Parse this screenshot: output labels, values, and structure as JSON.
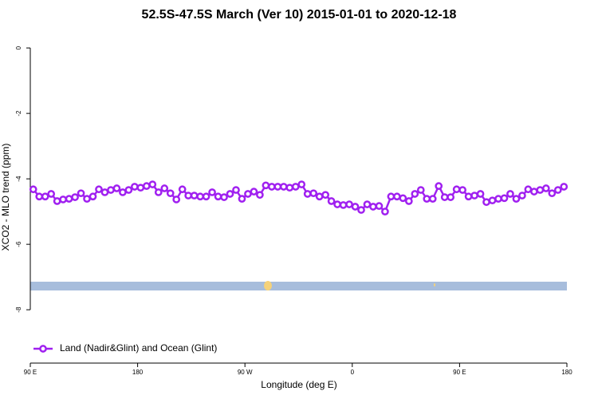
{
  "chart_data": {
    "type": "line",
    "title": "52.5S-47.5S March (Ver 10)   2015-01-01 to 2020-12-18",
    "x_label": "Longitude (deg E)",
    "y_label": "XCO2 - MLO trend (ppm)",
    "x": [
      92.5,
      97.5,
      102.5,
      107.5,
      112.5,
      117.5,
      122.5,
      127.5,
      132.5,
      137.5,
      142.5,
      147.5,
      152.5,
      157.5,
      162.5,
      167.5,
      172.5,
      177.5,
      182.5,
      187.5,
      192.5,
      197.5,
      202.5,
      207.5,
      212.5,
      217.5,
      222.5,
      227.5,
      232.5,
      237.5,
      242.5,
      247.5,
      252.5,
      257.5,
      262.5,
      267.5,
      272.5,
      277.5,
      282.5,
      287.5,
      292.5,
      297.5,
      302.5,
      307.5,
      312.5,
      317.5,
      322.5,
      327.5,
      332.5,
      337.5,
      342.5,
      347.5,
      352.5,
      357.5,
      362.5,
      367.5,
      372.5,
      377.5,
      382.5,
      387.5,
      392.5,
      397.5,
      402.5,
      407.5,
      412.5,
      417.5,
      422.5,
      427.5,
      432.5,
      437.5,
      442.5,
      447.5,
      452.5,
      457.5,
      462.5,
      467.5,
      472.5,
      477.5,
      482.5,
      487.5,
      492.5,
      497.5,
      502.5,
      507.5,
      512.5,
      517.5,
      522.5,
      527.5,
      532.5,
      537.5
    ],
    "series": [
      {
        "name": "Land (Nadir&Glint) and Ocean (Glint)",
        "color": "#a020f0",
        "values": [
          -4.32,
          -4.54,
          -4.54,
          -4.46,
          -4.68,
          -4.63,
          -4.61,
          -4.56,
          -4.44,
          -4.61,
          -4.54,
          -4.32,
          -4.41,
          -4.34,
          -4.29,
          -4.41,
          -4.34,
          -4.24,
          -4.27,
          -4.22,
          -4.17,
          -4.41,
          -4.29,
          -4.44,
          -4.63,
          -4.32,
          -4.51,
          -4.51,
          -4.54,
          -4.54,
          -4.41,
          -4.54,
          -4.56,
          -4.46,
          -4.34,
          -4.61,
          -4.46,
          -4.39,
          -4.49,
          -4.2,
          -4.24,
          -4.24,
          -4.24,
          -4.27,
          -4.24,
          -4.17,
          -4.46,
          -4.44,
          -4.54,
          -4.49,
          -4.68,
          -4.78,
          -4.8,
          -4.78,
          -4.85,
          -4.95,
          -4.78,
          -4.85,
          -4.83,
          -5.0,
          -4.54,
          -4.54,
          -4.59,
          -4.68,
          -4.46,
          -4.34,
          -4.61,
          -4.61,
          -4.22,
          -4.56,
          -4.56,
          -4.32,
          -4.34,
          -4.54,
          -4.51,
          -4.46,
          -4.71,
          -4.66,
          -4.61,
          -4.59,
          -4.46,
          -4.61,
          -4.51,
          -4.32,
          -4.39,
          -4.34,
          -4.29,
          -4.44,
          -4.34,
          -4.24
        ]
      }
    ],
    "xlim": [
      90,
      540
    ],
    "xticks": [
      {
        "value": 90,
        "label": "90 E"
      },
      180,
      {
        "value": 270,
        "label": "90 W"
      },
      {
        "value": 360,
        "label": "0"
      },
      {
        "value": 450,
        "label": "90 E"
      },
      {
        "value": 540,
        "label": "180"
      }
    ],
    "ylim": [
      -9.63,
      0.49
    ],
    "yticks": [
      0,
      -2,
      -4,
      -6,
      -8
    ],
    "legend": "bottom-left"
  }
}
